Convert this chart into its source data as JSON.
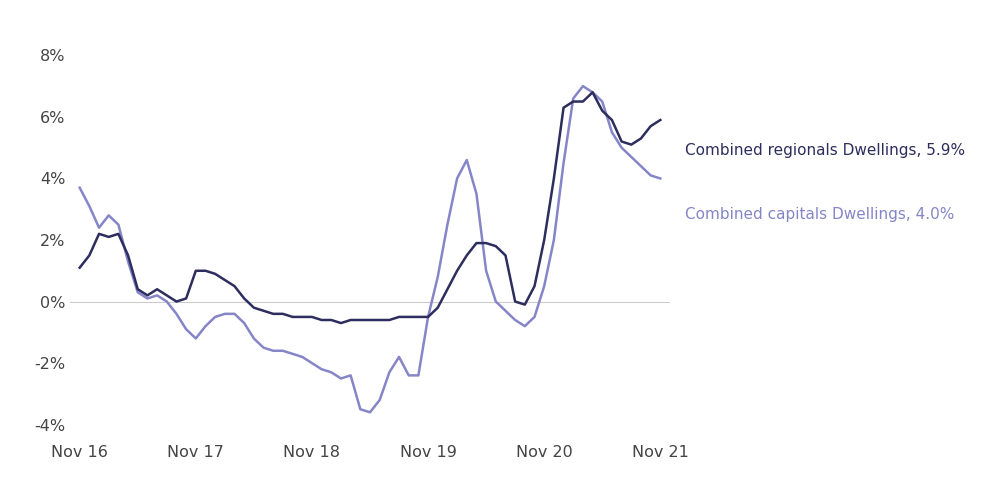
{
  "regionals_label": "Combined regionals Dwellings, 5.9%",
  "capitals_label": "Combined capitals Dwellings, 4.0%",
  "regionals_color": "#2d2d5e",
  "capitals_color": "#8585c8",
  "xtick_labels": [
    "Nov 16",
    "Nov 17",
    "Nov 18",
    "Nov 19",
    "Nov 20",
    "Nov 21"
  ],
  "xtick_positions": [
    0,
    12,
    24,
    36,
    48,
    60
  ],
  "ylim": [
    -4.5,
    8.5
  ],
  "yticks": [
    -4,
    -2,
    0,
    2,
    4,
    6,
    8
  ],
  "background_color": "#ffffff",
  "regionals_x": [
    0,
    1,
    2,
    3,
    4,
    5,
    6,
    7,
    8,
    9,
    10,
    11,
    12,
    13,
    14,
    15,
    16,
    17,
    18,
    19,
    20,
    21,
    22,
    23,
    24,
    25,
    26,
    27,
    28,
    29,
    30,
    31,
    32,
    33,
    34,
    35,
    36,
    37,
    38,
    39,
    40,
    41,
    42,
    43,
    44,
    45,
    46,
    47,
    48,
    49,
    50,
    51,
    52,
    53,
    54,
    55,
    56,
    57,
    58,
    59,
    60
  ],
  "regionals_y": [
    1.1,
    1.5,
    2.2,
    2.1,
    2.2,
    1.5,
    0.4,
    0.2,
    0.4,
    0.2,
    0.0,
    0.1,
    1.0,
    1.0,
    0.9,
    0.7,
    0.5,
    0.1,
    -0.2,
    -0.3,
    -0.4,
    -0.4,
    -0.5,
    -0.5,
    -0.5,
    -0.6,
    -0.6,
    -0.7,
    -0.6,
    -0.6,
    -0.6,
    -0.6,
    -0.6,
    -0.5,
    -0.5,
    -0.5,
    -0.5,
    -0.2,
    0.4,
    1.0,
    1.5,
    1.9,
    1.9,
    1.8,
    1.5,
    0.0,
    -0.1,
    0.5,
    2.0,
    4.0,
    6.3,
    6.5,
    6.5,
    6.8,
    6.2,
    5.9,
    5.2,
    5.1,
    5.3,
    5.7,
    5.9
  ],
  "capitals_x": [
    0,
    1,
    2,
    3,
    4,
    5,
    6,
    7,
    8,
    9,
    10,
    11,
    12,
    13,
    14,
    15,
    16,
    17,
    18,
    19,
    20,
    21,
    22,
    23,
    24,
    25,
    26,
    27,
    28,
    29,
    30,
    31,
    32,
    33,
    34,
    35,
    36,
    37,
    38,
    39,
    40,
    41,
    42,
    43,
    44,
    45,
    46,
    47,
    48,
    49,
    50,
    51,
    52,
    53,
    54,
    55,
    56,
    57,
    58,
    59,
    60
  ],
  "capitals_y": [
    3.7,
    3.1,
    2.4,
    2.8,
    2.5,
    1.3,
    0.3,
    0.1,
    0.2,
    0.0,
    -0.4,
    -0.9,
    -1.2,
    -0.8,
    -0.5,
    -0.4,
    -0.4,
    -0.7,
    -1.2,
    -1.5,
    -1.6,
    -1.6,
    -1.7,
    -1.8,
    -2.0,
    -2.2,
    -2.3,
    -2.5,
    -2.4,
    -3.5,
    -3.6,
    -3.2,
    -2.3,
    -1.8,
    -2.4,
    -2.4,
    -0.5,
    0.8,
    2.5,
    4.0,
    4.6,
    3.5,
    1.0,
    0.0,
    -0.3,
    -0.6,
    -0.8,
    -0.5,
    0.5,
    2.0,
    4.5,
    6.6,
    7.0,
    6.8,
    6.5,
    5.5,
    5.0,
    4.7,
    4.4,
    4.1,
    4.0
  ]
}
